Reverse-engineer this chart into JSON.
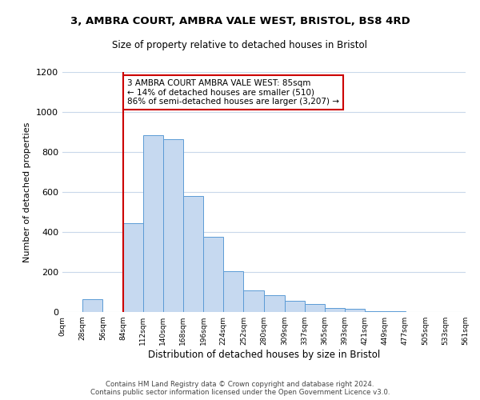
{
  "title": "3, AMBRA COURT, AMBRA VALE WEST, BRISTOL, BS8 4RD",
  "subtitle": "Size of property relative to detached houses in Bristol",
  "xlabel": "Distribution of detached houses by size in Bristol",
  "ylabel": "Number of detached properties",
  "bin_labels": [
    "0sqm",
    "28sqm",
    "56sqm",
    "84sqm",
    "112sqm",
    "140sqm",
    "168sqm",
    "196sqm",
    "224sqm",
    "252sqm",
    "280sqm",
    "309sqm",
    "337sqm",
    "365sqm",
    "393sqm",
    "421sqm",
    "449sqm",
    "477sqm",
    "505sqm",
    "533sqm",
    "561sqm"
  ],
  "bin_edges": [
    0,
    28,
    56,
    84,
    112,
    140,
    168,
    196,
    224,
    252,
    280,
    309,
    337,
    365,
    393,
    421,
    449,
    477,
    505,
    533,
    561
  ],
  "bar_heights": [
    0,
    65,
    0,
    445,
    885,
    865,
    580,
    375,
    205,
    110,
    85,
    55,
    40,
    20,
    15,
    5,
    3,
    2,
    0,
    0
  ],
  "bar_color": "#c6d9f0",
  "bar_edge_color": "#5b9bd5",
  "property_size": 85,
  "vline_color": "#cc0000",
  "annotation_line1": "3 AMBRA COURT AMBRA VALE WEST: 85sqm",
  "annotation_line2": "← 14% of detached houses are smaller (510)",
  "annotation_line3": "86% of semi-detached houses are larger (3,207) →",
  "annotation_box_edgecolor": "#cc0000",
  "ylim": [
    0,
    1200
  ],
  "yticks": [
    0,
    200,
    400,
    600,
    800,
    1000,
    1200
  ],
  "footer_text": "Contains HM Land Registry data © Crown copyright and database right 2024.\nContains public sector information licensed under the Open Government Licence v3.0.",
  "bg_color": "#ffffff",
  "grid_color": "#c8d8ea"
}
